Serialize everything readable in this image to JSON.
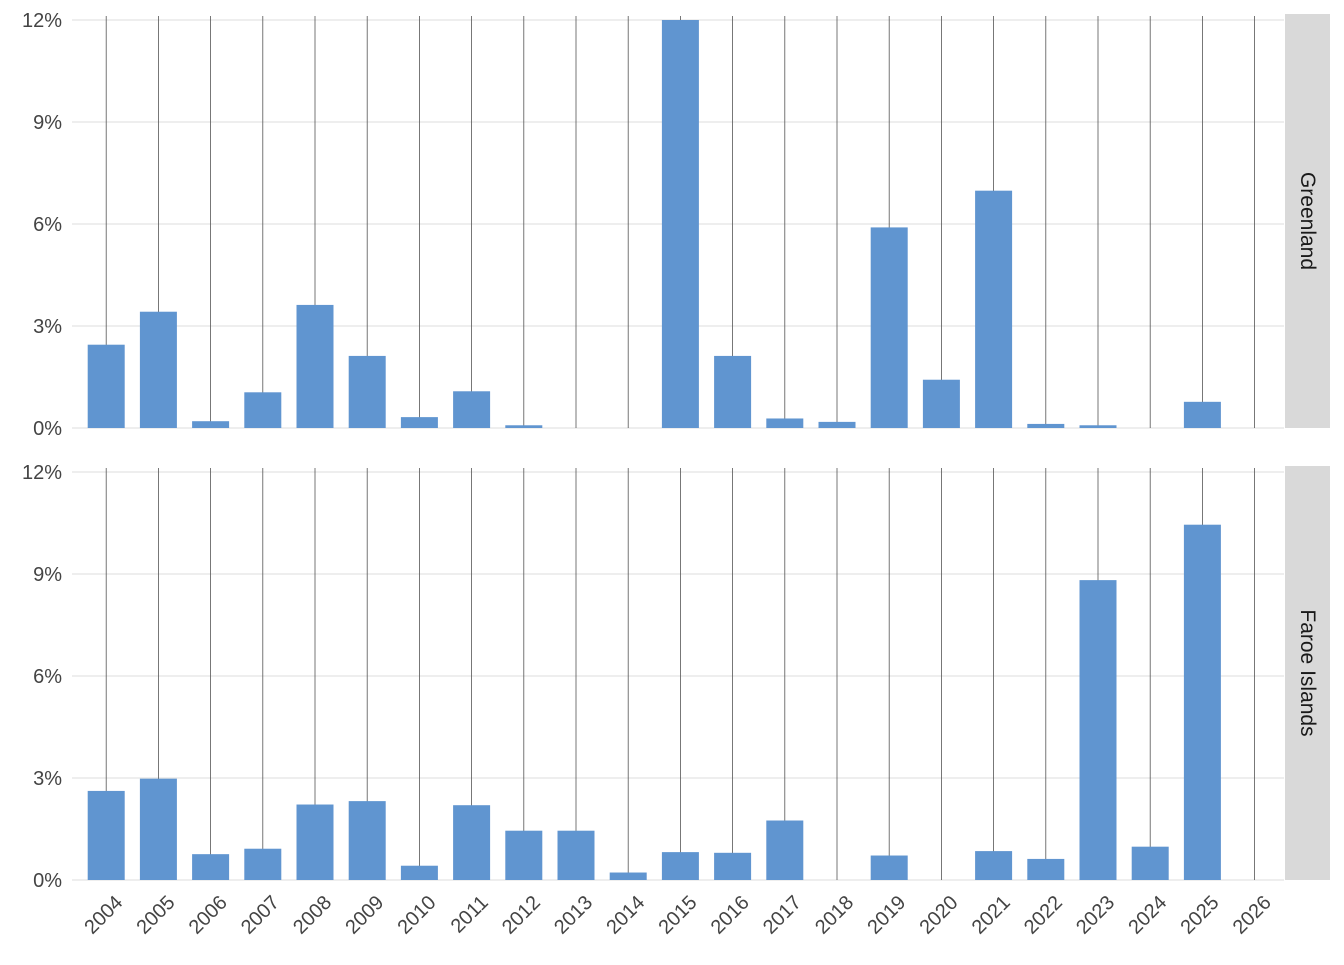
{
  "chart_data": {
    "type": "bar",
    "layout": "faceted-vertical",
    "bar_color": "#6095d0",
    "grid": true,
    "strip_color": "#d9d9d9",
    "categories": [
      "2004",
      "2005",
      "2006",
      "2007",
      "2008",
      "2009",
      "2010",
      "2011",
      "2012",
      "2013",
      "2014",
      "2015",
      "2016",
      "2017",
      "2018",
      "2019",
      "2020",
      "2021",
      "2022",
      "2023",
      "2024",
      "2025",
      "2026"
    ],
    "y_ticks": [
      "0%",
      "3%",
      "6%",
      "9%",
      "12%"
    ],
    "ylim": [
      0,
      12
    ],
    "facets": [
      {
        "label": "Greenland",
        "values": [
          2.45,
          3.42,
          0.2,
          1.05,
          3.62,
          2.12,
          0.32,
          1.08,
          0.08,
          0,
          0,
          12.0,
          2.12,
          0.28,
          0.18,
          5.9,
          1.42,
          6.98,
          0.12,
          0.08,
          0,
          0.77,
          0
        ]
      },
      {
        "label": "Faroe Islands",
        "values": [
          2.62,
          2.98,
          0.76,
          0.92,
          2.22,
          2.32,
          0.42,
          2.2,
          1.45,
          1.45,
          0.22,
          0.82,
          0.8,
          1.75,
          0,
          0.72,
          0,
          0.85,
          0.62,
          8.82,
          0.98,
          10.45,
          0
        ]
      }
    ]
  }
}
